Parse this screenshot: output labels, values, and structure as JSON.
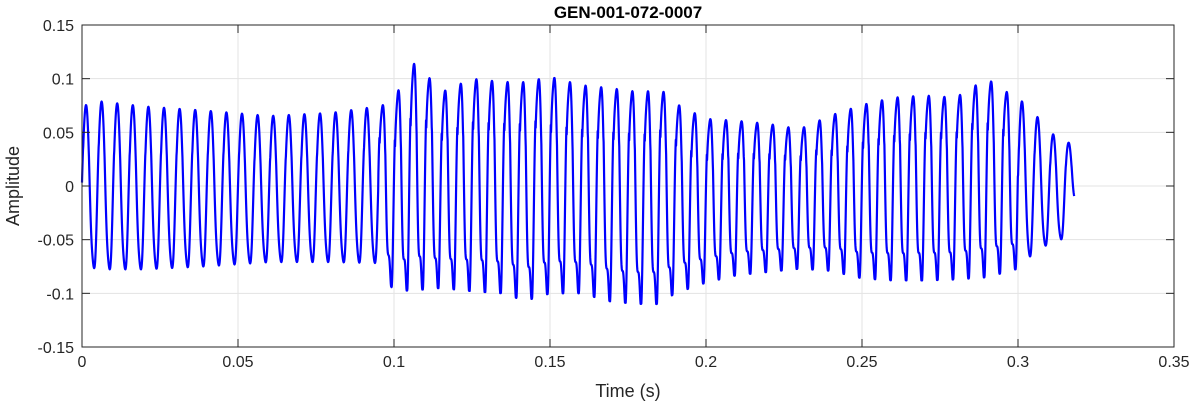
{
  "chart_data": {
    "type": "line",
    "title": "GEN-001-072-0007",
    "xlabel": "Time (s)",
    "ylabel": "Amplitude",
    "xlim": [
      0,
      0.35
    ],
    "ylim": [
      -0.15,
      0.15
    ],
    "xticks": [
      0,
      0.05,
      0.1,
      0.15,
      0.2,
      0.25,
      0.3,
      0.35
    ],
    "xtick_labels": [
      "0",
      "0.05",
      "0.1",
      "0.15",
      "0.2",
      "0.25",
      "0.3",
      "0.35"
    ],
    "yticks": [
      0.15,
      0.1,
      0.05,
      0,
      -0.05,
      -0.1,
      -0.15
    ],
    "ytick_labels": [
      "0.15",
      "0.1",
      "0.05",
      "0",
      "-0.05",
      "-0.1",
      "-0.15"
    ],
    "grid": true,
    "series": [
      {
        "color": "#0000ff",
        "cycle_period_s": 0.005,
        "duration_s": 0.318,
        "envelope_t": [
          0,
          0.005,
          0.02,
          0.04,
          0.06,
          0.08,
          0.095,
          0.1,
          0.107,
          0.115,
          0.125,
          0.135,
          0.142,
          0.15,
          0.16,
          0.17,
          0.18,
          0.185,
          0.19,
          0.2,
          0.21,
          0.22,
          0.23,
          0.24,
          0.25,
          0.26,
          0.27,
          0.28,
          0.29,
          0.3,
          0.305,
          0.31,
          0.315,
          0.318
        ],
        "envelope_max": [
          0.075,
          0.08,
          0.075,
          0.071,
          0.066,
          0.069,
          0.075,
          0.085,
          0.12,
          0.09,
          0.103,
          0.1,
          0.1,
          0.105,
          0.097,
          0.094,
          0.09,
          0.095,
          0.08,
          0.065,
          0.063,
          0.06,
          0.055,
          0.068,
          0.078,
          0.085,
          0.087,
          0.085,
          0.103,
          0.083,
          0.07,
          0.05,
          0.045,
          0.035
        ],
        "envelope_min": [
          -0.075,
          -0.08,
          -0.08,
          -0.077,
          -0.073,
          -0.073,
          -0.074,
          -0.098,
          -0.097,
          -0.095,
          -0.098,
          -0.1,
          -0.107,
          -0.1,
          -0.1,
          -0.108,
          -0.11,
          -0.11,
          -0.1,
          -0.09,
          -0.083,
          -0.08,
          -0.077,
          -0.079,
          -0.086,
          -0.088,
          -0.088,
          -0.087,
          -0.085,
          -0.077,
          -0.065,
          -0.055,
          -0.05,
          -0.02
        ]
      }
    ]
  }
}
